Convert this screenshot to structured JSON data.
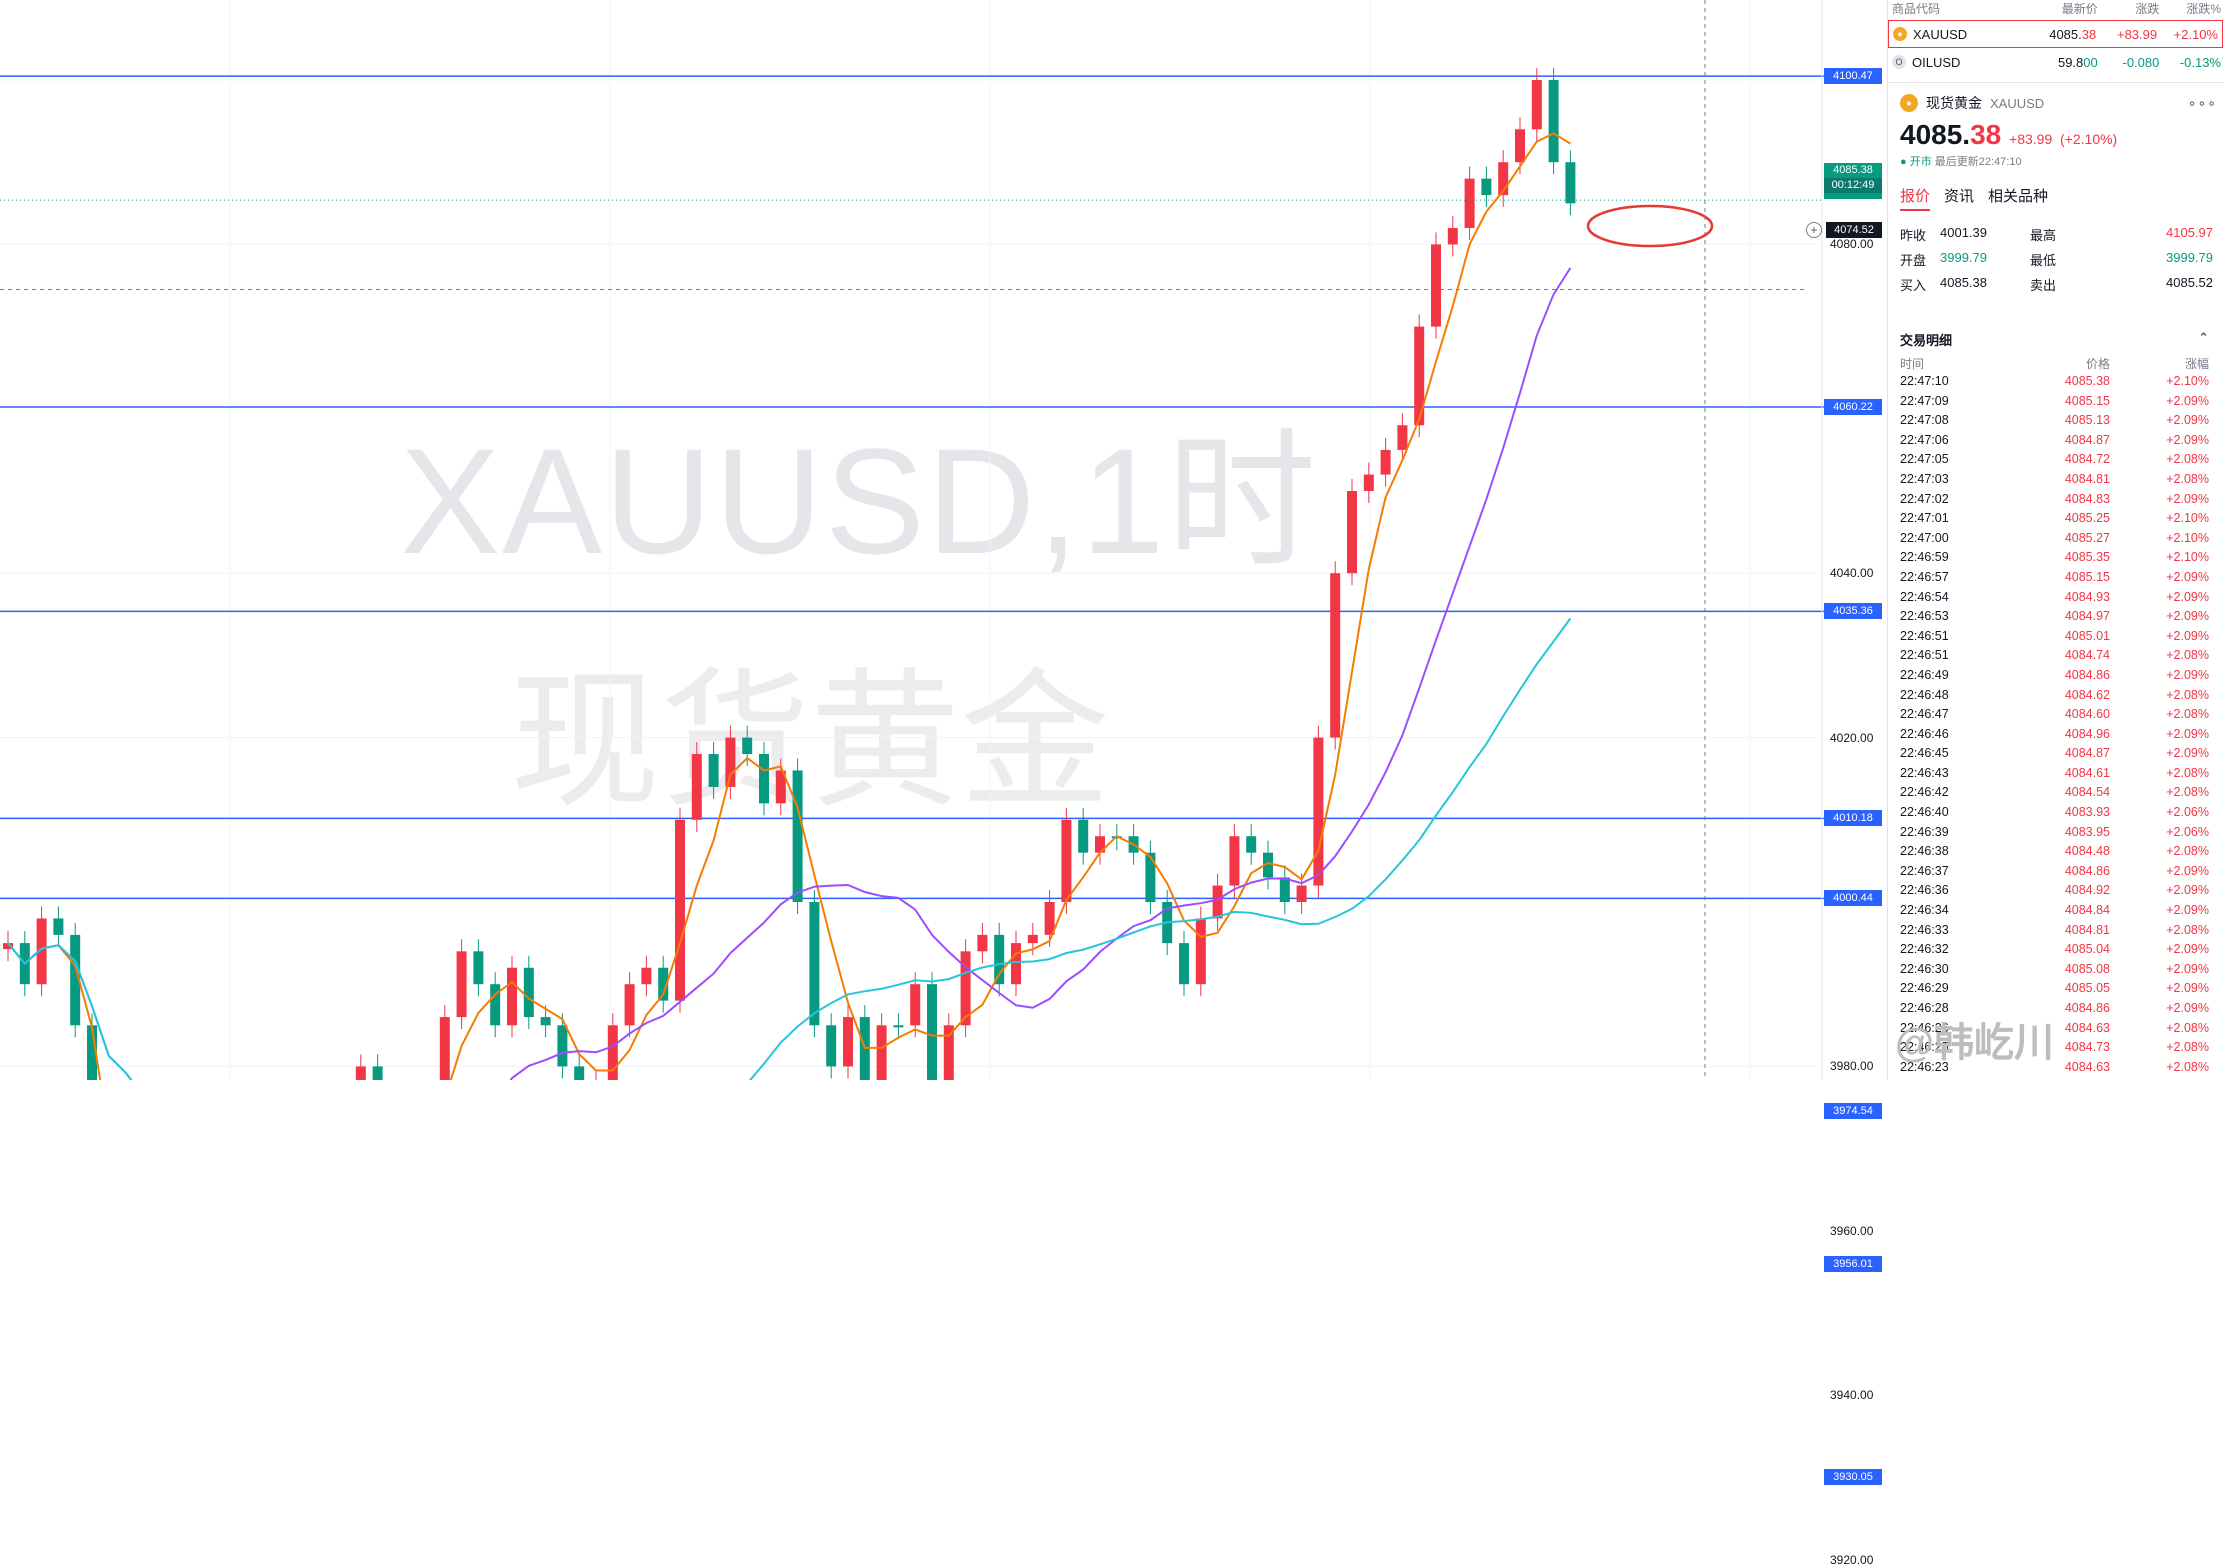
{
  "chart": {
    "watermark_symbol": "XAUUSD,1时",
    "watermark_name": "现货黄金",
    "price_axis": [
      "4100.00",
      "4080.00",
      "4040.00",
      "4020.00",
      "3980.00",
      "3960.00",
      "3940.00",
      "3920.00"
    ],
    "hlines": [
      "4100.47",
      "4060.22",
      "4035.36",
      "4010.18",
      "4000.44",
      "3974.54",
      "3956.01",
      "3930.05"
    ],
    "current_price": "4085.38",
    "countdown": "00:12:49",
    "crosshair_price": "4074.52",
    "colors": {
      "hline": "#2962ff",
      "up": "#f23645",
      "down": "#089981",
      "ma_fast": "#f57c00",
      "ma_mid": "#9c4dff",
      "ma_slow": "#26c6da"
    }
  },
  "watchlist": {
    "headers": [
      "商品代码",
      "最新价",
      "涨跌",
      "涨跌%"
    ],
    "rows": [
      {
        "symbol": "XAUUSD",
        "price_main": "4085.",
        "price_tail": "38",
        "change": "+83.99",
        "pct": "+2.10%",
        "icon": "gold-coin-icon"
      },
      {
        "symbol": "OILUSD",
        "price_main": "59.8",
        "price_tail": "00",
        "change": "-0.080",
        "pct": "-0.13%",
        "icon": "oil-icon"
      }
    ]
  },
  "detail": {
    "name": "现货黄金",
    "symbol": "XAUUSD",
    "price_main": "4085.",
    "price_tail": "38",
    "change": "+83.99",
    "pct": "(+2.10%)",
    "status": "● 开市",
    "update": "最后更新22:47:10",
    "tabs": [
      "报价",
      "资讯",
      "相关品种"
    ],
    "stats": [
      [
        "昨收",
        "4001.39",
        "最高",
        "4105.97"
      ],
      [
        "开盘",
        "3999.79",
        "最低",
        "3999.79"
      ],
      [
        "买入",
        "4085.38",
        "卖出",
        "4085.52"
      ]
    ]
  },
  "trades": {
    "title": "交易明细",
    "headers": [
      "时间",
      "价格",
      "涨幅"
    ],
    "rows": [
      [
        "22:47:10",
        "4085.38",
        "+2.10%"
      ],
      [
        "22:47:09",
        "4085.15",
        "+2.09%"
      ],
      [
        "22:47:08",
        "4085.13",
        "+2.09%"
      ],
      [
        "22:47:06",
        "4084.87",
        "+2.09%"
      ],
      [
        "22:47:05",
        "4084.72",
        "+2.08%"
      ],
      [
        "22:47:03",
        "4084.81",
        "+2.08%"
      ],
      [
        "22:47:02",
        "4084.83",
        "+2.09%"
      ],
      [
        "22:47:01",
        "4085.25",
        "+2.10%"
      ],
      [
        "22:47:00",
        "4085.27",
        "+2.10%"
      ],
      [
        "22:46:59",
        "4085.35",
        "+2.10%"
      ],
      [
        "22:46:57",
        "4085.15",
        "+2.09%"
      ],
      [
        "22:46:54",
        "4084.93",
        "+2.09%"
      ],
      [
        "22:46:53",
        "4084.97",
        "+2.09%"
      ],
      [
        "22:46:51",
        "4085.01",
        "+2.09%"
      ],
      [
        "22:46:51",
        "4084.74",
        "+2.08%"
      ],
      [
        "22:46:49",
        "4084.86",
        "+2.09%"
      ],
      [
        "22:46:48",
        "4084.62",
        "+2.08%"
      ],
      [
        "22:46:47",
        "4084.60",
        "+2.08%"
      ],
      [
        "22:46:46",
        "4084.96",
        "+2.09%"
      ],
      [
        "22:46:45",
        "4084.87",
        "+2.09%"
      ],
      [
        "22:46:43",
        "4084.61",
        "+2.08%"
      ],
      [
        "22:46:42",
        "4084.54",
        "+2.08%"
      ],
      [
        "22:46:40",
        "4083.93",
        "+2.06%"
      ],
      [
        "22:46:39",
        "4083.95",
        "+2.06%"
      ],
      [
        "22:46:38",
        "4084.48",
        "+2.08%"
      ],
      [
        "22:46:37",
        "4084.86",
        "+2.09%"
      ],
      [
        "22:46:36",
        "4084.92",
        "+2.09%"
      ],
      [
        "22:46:34",
        "4084.84",
        "+2.09%"
      ],
      [
        "22:46:33",
        "4084.81",
        "+2.08%"
      ],
      [
        "22:46:32",
        "4085.04",
        "+2.09%"
      ],
      [
        "22:46:30",
        "4085.08",
        "+2.09%"
      ],
      [
        "22:46:29",
        "4085.05",
        "+2.09%"
      ],
      [
        "22:46:28",
        "4084.86",
        "+2.09%"
      ],
      [
        "22:46:26",
        "4084.63",
        "+2.08%"
      ],
      [
        "22:46:25",
        "4084.73",
        "+2.08%"
      ],
      [
        "22:46:23",
        "4084.63",
        "+2.08%"
      ]
    ]
  },
  "weibo_watermark": "@韩屹川"
}
